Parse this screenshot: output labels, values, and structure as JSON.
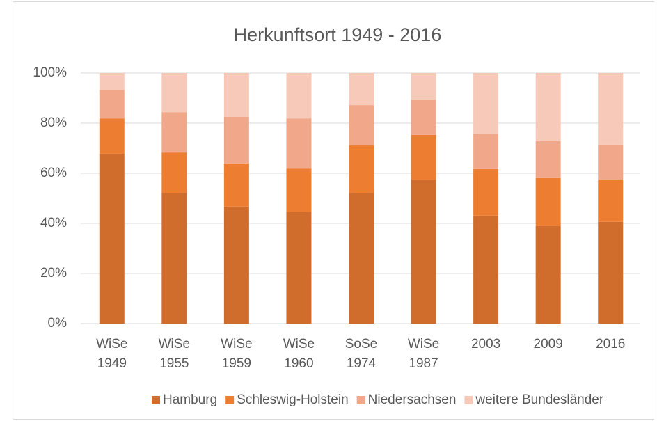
{
  "chart_data": {
    "type": "stacked_bar",
    "title": "Herkunftsort 1949 - 2016",
    "categories": [
      "WiSe 1949",
      "WiSe 1955",
      "WiSe 1959",
      "WiSe 1960",
      "SoSe 1974",
      "WiSe 1987",
      "2003",
      "2009",
      "2016"
    ],
    "series": [
      {
        "name": "Hamburg",
        "color": "#d06c2c",
        "values": [
          67.8,
          52.2,
          46.7,
          44.7,
          52.2,
          57.5,
          43.1,
          38.9,
          40.6
        ]
      },
      {
        "name": "Schleswig-Holstein",
        "color": "#ed7d31",
        "values": [
          14.1,
          16.1,
          17.2,
          17.2,
          18.9,
          17.8,
          18.6,
          19.2,
          16.9
        ]
      },
      {
        "name": "Niedersachsen",
        "color": "#f1a88a",
        "values": [
          11.4,
          16.1,
          18.6,
          20.0,
          16.1,
          14.1,
          14.1,
          14.7,
          13.9
        ]
      },
      {
        "name": "weitere Bundesländer",
        "color": "#f6c9b9",
        "values": [
          6.7,
          15.6,
          17.5,
          18.1,
          12.8,
          10.6,
          24.2,
          27.2,
          28.6
        ]
      }
    ],
    "ylim": [
      0,
      100
    ],
    "yticks": [
      {
        "value": 0,
        "label": "0%"
      },
      {
        "value": 20,
        "label": "20%"
      },
      {
        "value": 40,
        "label": "40%"
      },
      {
        "value": 60,
        "label": "60%"
      },
      {
        "value": 80,
        "label": "80%"
      },
      {
        "value": 100,
        "label": "100%"
      }
    ],
    "grid": true,
    "legend": "bottom"
  }
}
